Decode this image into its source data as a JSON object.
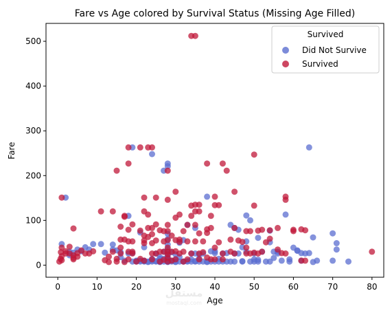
{
  "chart_data": {
    "type": "scatter",
    "title": "Fare vs Age colored by Survival Status (Missing Age Filled)",
    "xlabel": "Age",
    "ylabel": "Fare",
    "xlim": [
      -3,
      83
    ],
    "ylim": [
      -27,
      540
    ],
    "xticks": [
      0,
      10,
      20,
      30,
      40,
      50,
      60,
      70,
      80
    ],
    "yticks": [
      0,
      100,
      200,
      300,
      400,
      500
    ],
    "grid": false,
    "legend": {
      "title": "Survived",
      "position": "top-right"
    },
    "colors": {
      "did_not_survive": "#5b6ed0",
      "survived": "#c0183a",
      "edge": "#000000"
    },
    "series": [
      {
        "name": "Did Not Survive",
        "color": "#5b6ed0",
        "points": [
          [
            1,
            47
          ],
          [
            2,
            151
          ],
          [
            3,
            30
          ],
          [
            3,
            22
          ],
          [
            4,
            28
          ],
          [
            5,
            35
          ],
          [
            6,
            31
          ],
          [
            7,
            40
          ],
          [
            8,
            35
          ],
          [
            9,
            47
          ],
          [
            11,
            47
          ],
          [
            12,
            28
          ],
          [
            14,
            46
          ],
          [
            14,
            35
          ],
          [
            15,
            33
          ],
          [
            16,
            29
          ],
          [
            16,
            18
          ],
          [
            17,
            10
          ],
          [
            18,
            110
          ],
          [
            18,
            26
          ],
          [
            19,
            263
          ],
          [
            19,
            8
          ],
          [
            19,
            27
          ],
          [
            20,
            8
          ],
          [
            20,
            9
          ],
          [
            20,
            10
          ],
          [
            21,
            10
          ],
          [
            21,
            73
          ],
          [
            21,
            8
          ],
          [
            22,
            8
          ],
          [
            22,
            9
          ],
          [
            22,
            10
          ],
          [
            22,
            40
          ],
          [
            23,
            7
          ],
          [
            23,
            8
          ],
          [
            24,
            248
          ],
          [
            24,
            8
          ],
          [
            24,
            10
          ],
          [
            24,
            14
          ],
          [
            25,
            8
          ],
          [
            25,
            26
          ],
          [
            25,
            9
          ],
          [
            26,
            7
          ],
          [
            26,
            8
          ],
          [
            26,
            14
          ],
          [
            26,
            18
          ],
          [
            27,
            211
          ],
          [
            27,
            8
          ],
          [
            27,
            14
          ],
          [
            27,
            30
          ],
          [
            28,
            221
          ],
          [
            28,
            227
          ],
          [
            28,
            7
          ],
          [
            28,
            8
          ],
          [
            28,
            9
          ],
          [
            28,
            10
          ],
          [
            28,
            15
          ],
          [
            28,
            20
          ],
          [
            28,
            35
          ],
          [
            28,
            46
          ],
          [
            28,
            58
          ],
          [
            28,
            70
          ],
          [
            28,
            25
          ],
          [
            28,
            13
          ],
          [
            29,
            8
          ],
          [
            29,
            10
          ],
          [
            29,
            29
          ],
          [
            30,
            7
          ],
          [
            30,
            8
          ],
          [
            30,
            13
          ],
          [
            30,
            24
          ],
          [
            31,
            8
          ],
          [
            31,
            18
          ],
          [
            31,
            50
          ],
          [
            32,
            8
          ],
          [
            32,
            8
          ],
          [
            32,
            56
          ],
          [
            33,
            8
          ],
          [
            33,
            9
          ],
          [
            33,
            90
          ],
          [
            34,
            8
          ],
          [
            34,
            13
          ],
          [
            34,
            26
          ],
          [
            35,
            8
          ],
          [
            35,
            9
          ],
          [
            35,
            26
          ],
          [
            35,
            83
          ],
          [
            36,
            8
          ],
          [
            36,
            15
          ],
          [
            36,
            24
          ],
          [
            37,
            8
          ],
          [
            37,
            26
          ],
          [
            38,
            8
          ],
          [
            38,
            153
          ],
          [
            38,
            7
          ],
          [
            39,
            8
          ],
          [
            39,
            31
          ],
          [
            40,
            8
          ],
          [
            40,
            27
          ],
          [
            40,
            31
          ],
          [
            41,
            8
          ],
          [
            41,
            14
          ],
          [
            42,
            8
          ],
          [
            42,
            26
          ],
          [
            43,
            8
          ],
          [
            43,
            27
          ],
          [
            44,
            8
          ],
          [
            44,
            90
          ],
          [
            45,
            8
          ],
          [
            45,
            83
          ],
          [
            45,
            26
          ],
          [
            46,
            79
          ],
          [
            46,
            26
          ],
          [
            47,
            8
          ],
          [
            47,
            9
          ],
          [
            47,
            40
          ],
          [
            48,
            111
          ],
          [
            48,
            53
          ],
          [
            48,
            30
          ],
          [
            49,
            100
          ],
          [
            49,
            8
          ],
          [
            50,
            13
          ],
          [
            50,
            8
          ],
          [
            50,
            26
          ],
          [
            51,
            8
          ],
          [
            51,
            12
          ],
          [
            51,
            61
          ],
          [
            52,
            30
          ],
          [
            53,
            8
          ],
          [
            54,
            8
          ],
          [
            54,
            51
          ],
          [
            54,
            77
          ],
          [
            55,
            16
          ],
          [
            55,
            30
          ],
          [
            56,
            30
          ],
          [
            56,
            26
          ],
          [
            57,
            10
          ],
          [
            58,
            113
          ],
          [
            59,
            8
          ],
          [
            59,
            13
          ],
          [
            60,
            39
          ],
          [
            61,
            32
          ],
          [
            61,
            33
          ],
          [
            62,
            10
          ],
          [
            62,
            27
          ],
          [
            63,
            26
          ],
          [
            64,
            263
          ],
          [
            64,
            27
          ],
          [
            65,
            62
          ],
          [
            65,
            7
          ],
          [
            66,
            10
          ],
          [
            70,
            71
          ],
          [
            70,
            10
          ],
          [
            71,
            49
          ],
          [
            71,
            35
          ],
          [
            74,
            8
          ]
        ]
      },
      {
        "name": "Survived",
        "color": "#c0183a",
        "points": [
          [
            0.4,
            8
          ],
          [
            0.7,
            14
          ],
          [
            0.8,
            29
          ],
          [
            1,
            151
          ],
          [
            1,
            39
          ],
          [
            1,
            11
          ],
          [
            1,
            20
          ],
          [
            2,
            26
          ],
          [
            2,
            31
          ],
          [
            3,
            41
          ],
          [
            3,
            26
          ],
          [
            4,
            82
          ],
          [
            4,
            22
          ],
          [
            4,
            16
          ],
          [
            4,
            13
          ],
          [
            5,
            19
          ],
          [
            5,
            27
          ],
          [
            6,
            33
          ],
          [
            7,
            26
          ],
          [
            8,
            26
          ],
          [
            9,
            31
          ],
          [
            11,
            120
          ],
          [
            12,
            11
          ],
          [
            13,
            19
          ],
          [
            13,
            7
          ],
          [
            14,
            120
          ],
          [
            14,
            30
          ],
          [
            15,
            211
          ],
          [
            15,
            14
          ],
          [
            15,
            8
          ],
          [
            16,
            86
          ],
          [
            16,
            57
          ],
          [
            16,
            39
          ],
          [
            16,
            26
          ],
          [
            17,
            57
          ],
          [
            17,
            110
          ],
          [
            17,
            108
          ],
          [
            17,
            7
          ],
          [
            18,
            263
          ],
          [
            18,
            227
          ],
          [
            18,
            79
          ],
          [
            18,
            53
          ],
          [
            18,
            30
          ],
          [
            18,
            13
          ],
          [
            19,
            91
          ],
          [
            19,
            53
          ],
          [
            19,
            30
          ],
          [
            19,
            26
          ],
          [
            20,
            8
          ],
          [
            21,
            263
          ],
          [
            21,
            77
          ],
          [
            21,
            14
          ],
          [
            22,
            49
          ],
          [
            22,
            120
          ],
          [
            22,
            151
          ],
          [
            22,
            66
          ],
          [
            22,
            55
          ],
          [
            22,
            10
          ],
          [
            23,
            263
          ],
          [
            23,
            113
          ],
          [
            23,
            83
          ],
          [
            23,
            63
          ],
          [
            24,
            263
          ],
          [
            24,
            83
          ],
          [
            24,
            69
          ],
          [
            24,
            49
          ],
          [
            24,
            26
          ],
          [
            24,
            13
          ],
          [
            25,
            151
          ],
          [
            25,
            91
          ],
          [
            25,
            55
          ],
          [
            25,
            26
          ],
          [
            26,
            78
          ],
          [
            26,
            30
          ],
          [
            26,
            8
          ],
          [
            27,
            76
          ],
          [
            27,
            53
          ],
          [
            27,
            30
          ],
          [
            27,
            12
          ],
          [
            28,
            211
          ],
          [
            28,
            146
          ],
          [
            28,
            90
          ],
          [
            28,
            76
          ],
          [
            28,
            56
          ],
          [
            28,
            39
          ],
          [
            28,
            30
          ],
          [
            28,
            24
          ],
          [
            28,
            16
          ],
          [
            28,
            8
          ],
          [
            29,
            30
          ],
          [
            29,
            66
          ],
          [
            29,
            10
          ],
          [
            30,
            164
          ],
          [
            30,
            106
          ],
          [
            30,
            56
          ],
          [
            30,
            31
          ],
          [
            30,
            13
          ],
          [
            31,
            113
          ],
          [
            31,
            57
          ],
          [
            31,
            52
          ],
          [
            31,
            26
          ],
          [
            32,
            76
          ],
          [
            32,
            30
          ],
          [
            32,
            8
          ],
          [
            33,
            90
          ],
          [
            33,
            53
          ],
          [
            33,
            13
          ],
          [
            34,
            512
          ],
          [
            34,
            110
          ],
          [
            34,
            133
          ],
          [
            34,
            26
          ],
          [
            35,
            512
          ],
          [
            35,
            135
          ],
          [
            35,
            120
          ],
          [
            35,
            90
          ],
          [
            35,
            53
          ],
          [
            36,
            135
          ],
          [
            36,
            120
          ],
          [
            36,
            71
          ],
          [
            36,
            26
          ],
          [
            36,
            13
          ],
          [
            37,
            53
          ],
          [
            37,
            29
          ],
          [
            38,
            227
          ],
          [
            38,
            80
          ],
          [
            38,
            72
          ],
          [
            38,
            17
          ],
          [
            39,
            83
          ],
          [
            39,
            110
          ],
          [
            39,
            13
          ],
          [
            40,
            134
          ],
          [
            40,
            153
          ],
          [
            40,
            39
          ],
          [
            40,
            13
          ],
          [
            41,
            134
          ],
          [
            41,
            51
          ],
          [
            42,
            227
          ],
          [
            42,
            26
          ],
          [
            42,
            13
          ],
          [
            43,
            211
          ],
          [
            44,
            57
          ],
          [
            44,
            30
          ],
          [
            45,
            164
          ],
          [
            45,
            83
          ],
          [
            45,
            26
          ],
          [
            46,
            55
          ],
          [
            47,
            52
          ],
          [
            48,
            76
          ],
          [
            48,
            39
          ],
          [
            48,
            26
          ],
          [
            49,
            76
          ],
          [
            49,
            26
          ],
          [
            50,
            247
          ],
          [
            50,
            133
          ],
          [
            50,
            28
          ],
          [
            51,
            77
          ],
          [
            51,
            26
          ],
          [
            52,
            79
          ],
          [
            52,
            30
          ],
          [
            53,
            51
          ],
          [
            54,
            59
          ],
          [
            54,
            78
          ],
          [
            56,
            35
          ],
          [
            56,
            83
          ],
          [
            57,
            27
          ],
          [
            58,
            153
          ],
          [
            58,
            146
          ],
          [
            58,
            26
          ],
          [
            60,
            76
          ],
          [
            60,
            79
          ],
          [
            62,
            80
          ],
          [
            62,
            10
          ],
          [
            63,
            78
          ],
          [
            63,
            10
          ],
          [
            80,
            30
          ]
        ]
      }
    ]
  }
}
